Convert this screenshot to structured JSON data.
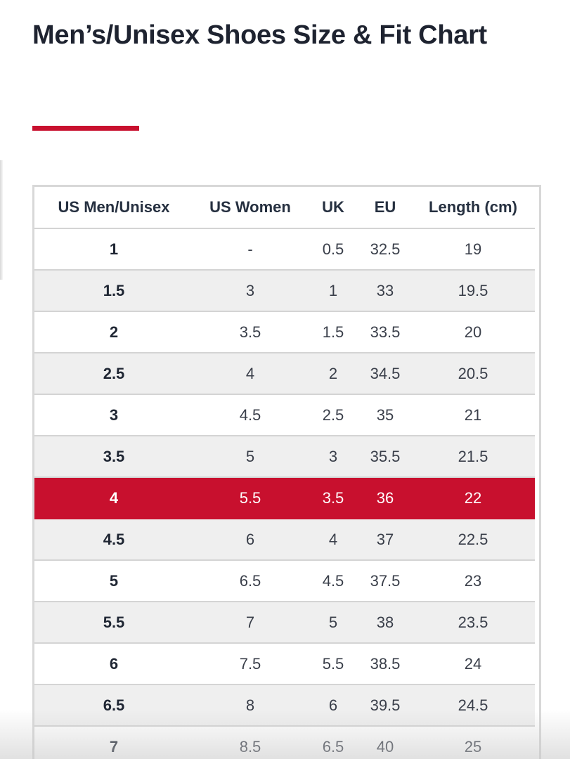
{
  "page": {
    "title": "Men’s/Unisex Shoes Size & Fit Chart",
    "accent_color": "#c8102e",
    "highlight_color": "#c8102e"
  },
  "table": {
    "headers": [
      "US Men/Unisex",
      "US Women",
      "UK",
      "EU",
      "Length (cm)"
    ],
    "highlighted_row": 6,
    "rows": [
      [
        "1",
        "-",
        "0.5",
        "32.5",
        "19"
      ],
      [
        "1.5",
        "3",
        "1",
        "33",
        "19.5"
      ],
      [
        "2",
        "3.5",
        "1.5",
        "33.5",
        "20"
      ],
      [
        "2.5",
        "4",
        "2",
        "34.5",
        "20.5"
      ],
      [
        "3",
        "4.5",
        "2.5",
        "35",
        "21"
      ],
      [
        "3.5",
        "5",
        "3",
        "35.5",
        "21.5"
      ],
      [
        "4",
        "5.5",
        "3.5",
        "36",
        "22"
      ],
      [
        "4.5",
        "6",
        "4",
        "37",
        "22.5"
      ],
      [
        "5",
        "6.5",
        "4.5",
        "37.5",
        "23"
      ],
      [
        "5.5",
        "7",
        "5",
        "38",
        "23.5"
      ],
      [
        "6",
        "7.5",
        "5.5",
        "38.5",
        "24"
      ],
      [
        "6.5",
        "8",
        "6",
        "39.5",
        "24.5"
      ],
      [
        "7",
        "8.5",
        "6.5",
        "40",
        "25"
      ]
    ]
  }
}
